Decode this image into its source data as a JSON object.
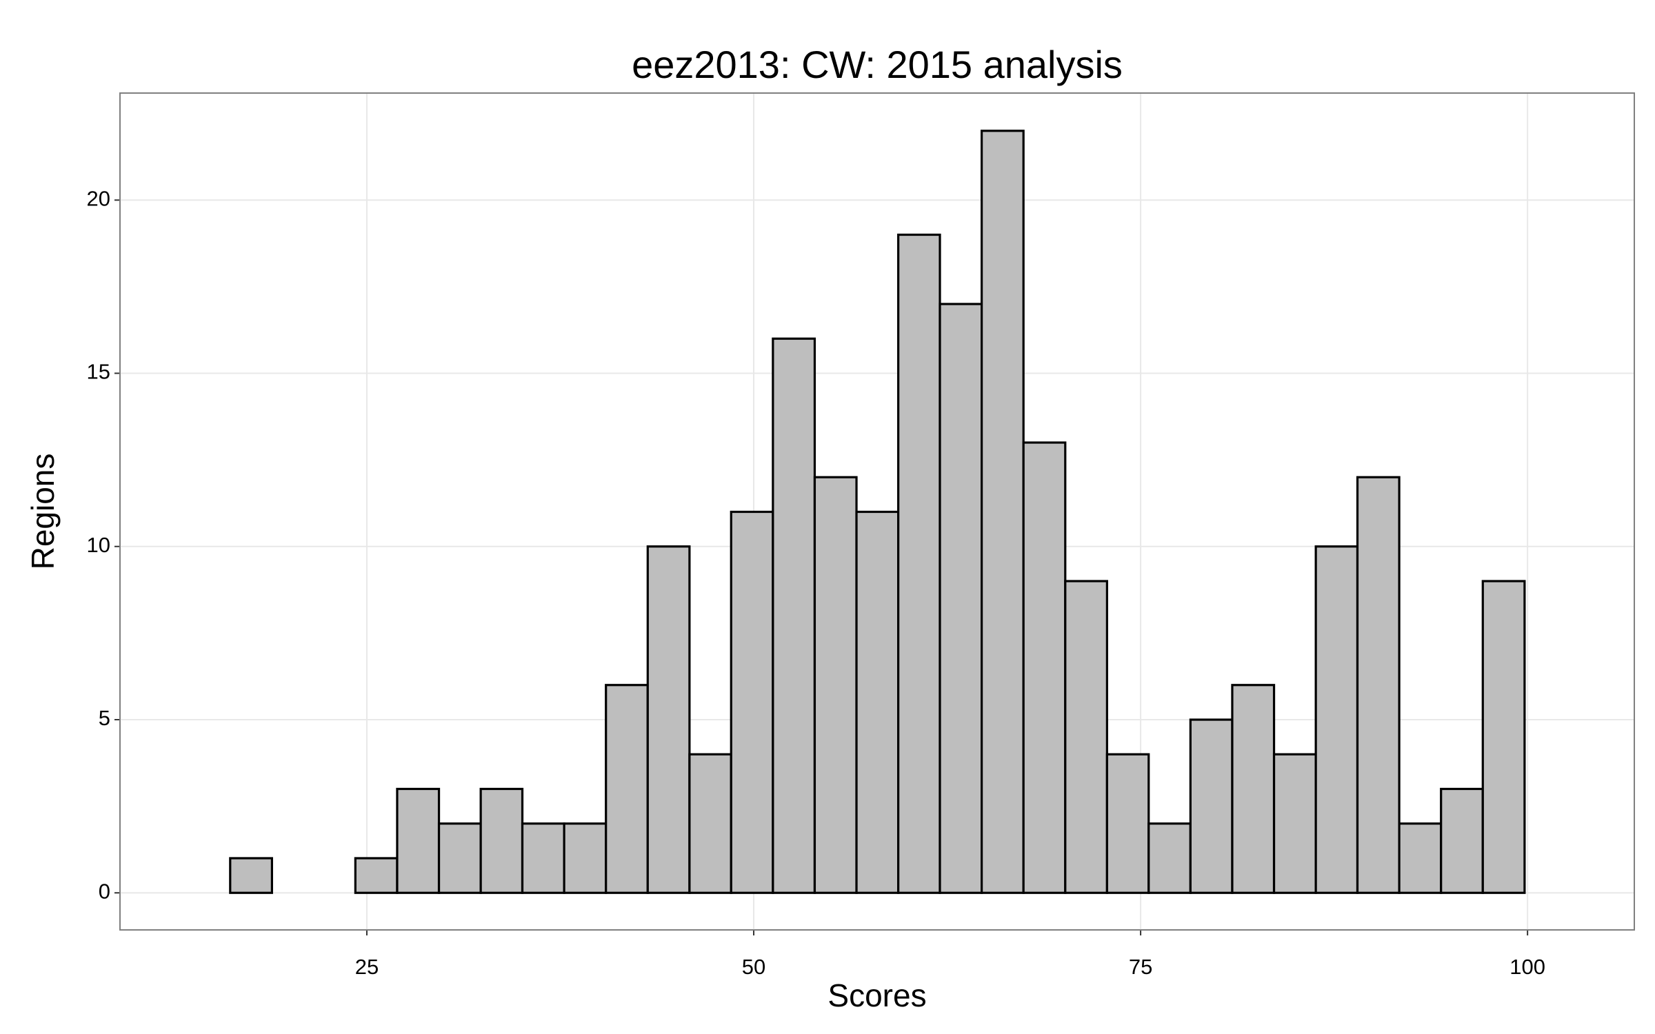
{
  "chart_data": {
    "type": "histogram",
    "title": "eez2013: CW: 2015 analysis",
    "x_label": "Scores",
    "y_label": "Regions",
    "bins": [
      13.47,
      16.17,
      18.87,
      21.56,
      24.26,
      26.96,
      29.66,
      32.36,
      35.05,
      37.75,
      40.45,
      43.15,
      45.85,
      48.54,
      51.24,
      53.94,
      56.64,
      59.34,
      62.03,
      64.73,
      67.43,
      70.13,
      72.83,
      75.52,
      78.22,
      80.92,
      83.62,
      86.32,
      89.01,
      91.71,
      94.41,
      97.11,
      99.81,
      102.5
    ],
    "values": [
      0,
      1,
      0,
      0,
      1,
      3,
      2,
      3,
      2,
      2,
      6,
      10,
      4,
      11,
      16,
      12,
      11,
      19,
      17,
      22,
      13,
      9,
      4,
      2,
      5,
      6,
      4,
      10,
      12,
      2,
      3,
      9,
      0
    ],
    "color": "#bebebe",
    "edge_color": "#000000",
    "xlim": [
      9.05,
      106.9
    ],
    "ylim": [
      -1.07,
      23.09
    ],
    "xticks": [
      25,
      50,
      75,
      100
    ],
    "yticks": [
      0,
      5,
      10,
      15,
      20
    ],
    "grid": true
  }
}
